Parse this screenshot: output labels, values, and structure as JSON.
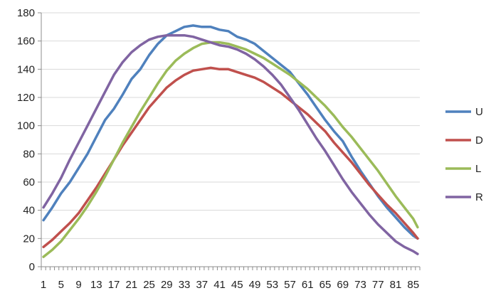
{
  "chart_data": {
    "type": "line",
    "title": "",
    "xlabel": "",
    "ylabel": "",
    "ylim": [
      0,
      180
    ],
    "y_ticks": [
      0,
      20,
      40,
      60,
      80,
      100,
      120,
      140,
      160,
      180
    ],
    "x_ticks": [
      1,
      5,
      9,
      13,
      17,
      21,
      25,
      29,
      33,
      37,
      41,
      45,
      49,
      53,
      57,
      61,
      65,
      69,
      73,
      77,
      81,
      85
    ],
    "x_range": [
      1,
      86
    ],
    "grid": "horizontal",
    "legend_position": "right",
    "series": [
      {
        "name": "U",
        "color": "#4f81bd",
        "points": [
          [
            1,
            33
          ],
          [
            3,
            42
          ],
          [
            5,
            52
          ],
          [
            7,
            60
          ],
          [
            9,
            70
          ],
          [
            11,
            80
          ],
          [
            13,
            92
          ],
          [
            15,
            104
          ],
          [
            17,
            112
          ],
          [
            19,
            122
          ],
          [
            21,
            133
          ],
          [
            23,
            140
          ],
          [
            25,
            150
          ],
          [
            27,
            158
          ],
          [
            29,
            164
          ],
          [
            31,
            167
          ],
          [
            33,
            170
          ],
          [
            35,
            171
          ],
          [
            37,
            170
          ],
          [
            39,
            170
          ],
          [
            41,
            168
          ],
          [
            43,
            167
          ],
          [
            45,
            163
          ],
          [
            47,
            161
          ],
          [
            49,
            158
          ],
          [
            51,
            153
          ],
          [
            53,
            148
          ],
          [
            55,
            143
          ],
          [
            57,
            138
          ],
          [
            59,
            130
          ],
          [
            61,
            122
          ],
          [
            63,
            113
          ],
          [
            65,
            104
          ],
          [
            67,
            96
          ],
          [
            69,
            89
          ],
          [
            71,
            78
          ],
          [
            73,
            68
          ],
          [
            75,
            59
          ],
          [
            77,
            50
          ],
          [
            79,
            42
          ],
          [
            81,
            35
          ],
          [
            83,
            28
          ],
          [
            85,
            22
          ],
          [
            86,
            20
          ]
        ]
      },
      {
        "name": "D",
        "color": "#c0504d",
        "points": [
          [
            1,
            14
          ],
          [
            3,
            19
          ],
          [
            5,
            25
          ],
          [
            7,
            31
          ],
          [
            9,
            38
          ],
          [
            11,
            47
          ],
          [
            13,
            56
          ],
          [
            15,
            66
          ],
          [
            17,
            76
          ],
          [
            19,
            86
          ],
          [
            21,
            95
          ],
          [
            23,
            104
          ],
          [
            25,
            113
          ],
          [
            27,
            120
          ],
          [
            29,
            127
          ],
          [
            31,
            132
          ],
          [
            33,
            136
          ],
          [
            35,
            139
          ],
          [
            37,
            140
          ],
          [
            39,
            141
          ],
          [
            41,
            140
          ],
          [
            43,
            140
          ],
          [
            45,
            138
          ],
          [
            47,
            136
          ],
          [
            49,
            134
          ],
          [
            51,
            131
          ],
          [
            53,
            127
          ],
          [
            55,
            123
          ],
          [
            57,
            118
          ],
          [
            59,
            113
          ],
          [
            61,
            108
          ],
          [
            63,
            102
          ],
          [
            65,
            96
          ],
          [
            67,
            88
          ],
          [
            69,
            81
          ],
          [
            71,
            74
          ],
          [
            73,
            66
          ],
          [
            75,
            58
          ],
          [
            77,
            51
          ],
          [
            79,
            44
          ],
          [
            81,
            38
          ],
          [
            83,
            31
          ],
          [
            85,
            24
          ],
          [
            86,
            20
          ]
        ]
      },
      {
        "name": "L",
        "color": "#9bbb59",
        "points": [
          [
            1,
            7
          ],
          [
            3,
            12
          ],
          [
            5,
            18
          ],
          [
            7,
            26
          ],
          [
            9,
            34
          ],
          [
            11,
            43
          ],
          [
            13,
            53
          ],
          [
            15,
            64
          ],
          [
            17,
            76
          ],
          [
            19,
            88
          ],
          [
            21,
            99
          ],
          [
            23,
            110
          ],
          [
            25,
            120
          ],
          [
            27,
            130
          ],
          [
            29,
            139
          ],
          [
            31,
            146
          ],
          [
            33,
            151
          ],
          [
            35,
            155
          ],
          [
            37,
            158
          ],
          [
            39,
            159
          ],
          [
            41,
            159
          ],
          [
            43,
            158
          ],
          [
            45,
            156
          ],
          [
            47,
            154
          ],
          [
            49,
            151
          ],
          [
            51,
            148
          ],
          [
            53,
            144
          ],
          [
            55,
            140
          ],
          [
            57,
            136
          ],
          [
            59,
            131
          ],
          [
            61,
            126
          ],
          [
            63,
            120
          ],
          [
            65,
            114
          ],
          [
            67,
            107
          ],
          [
            69,
            99
          ],
          [
            71,
            92
          ],
          [
            73,
            84
          ],
          [
            75,
            76
          ],
          [
            77,
            68
          ],
          [
            79,
            59
          ],
          [
            81,
            50
          ],
          [
            83,
            42
          ],
          [
            85,
            34
          ],
          [
            86,
            28
          ]
        ]
      },
      {
        "name": "R",
        "color": "#8064a2",
        "points": [
          [
            1,
            42
          ],
          [
            3,
            52
          ],
          [
            5,
            63
          ],
          [
            7,
            76
          ],
          [
            9,
            88
          ],
          [
            11,
            100
          ],
          [
            13,
            112
          ],
          [
            15,
            124
          ],
          [
            17,
            136
          ],
          [
            19,
            145
          ],
          [
            21,
            152
          ],
          [
            23,
            157
          ],
          [
            25,
            161
          ],
          [
            27,
            163
          ],
          [
            29,
            164
          ],
          [
            31,
            164
          ],
          [
            33,
            164
          ],
          [
            35,
            163
          ],
          [
            37,
            161
          ],
          [
            39,
            159
          ],
          [
            41,
            157
          ],
          [
            43,
            156
          ],
          [
            45,
            154
          ],
          [
            47,
            151
          ],
          [
            49,
            147
          ],
          [
            51,
            142
          ],
          [
            53,
            136
          ],
          [
            55,
            129
          ],
          [
            57,
            120
          ],
          [
            59,
            111
          ],
          [
            61,
            101
          ],
          [
            63,
            91
          ],
          [
            65,
            82
          ],
          [
            67,
            72
          ],
          [
            69,
            62
          ],
          [
            71,
            53
          ],
          [
            73,
            45
          ],
          [
            75,
            37
          ],
          [
            77,
            30
          ],
          [
            79,
            24
          ],
          [
            81,
            18
          ],
          [
            83,
            14
          ],
          [
            85,
            11
          ],
          [
            86,
            9
          ]
        ]
      }
    ]
  }
}
